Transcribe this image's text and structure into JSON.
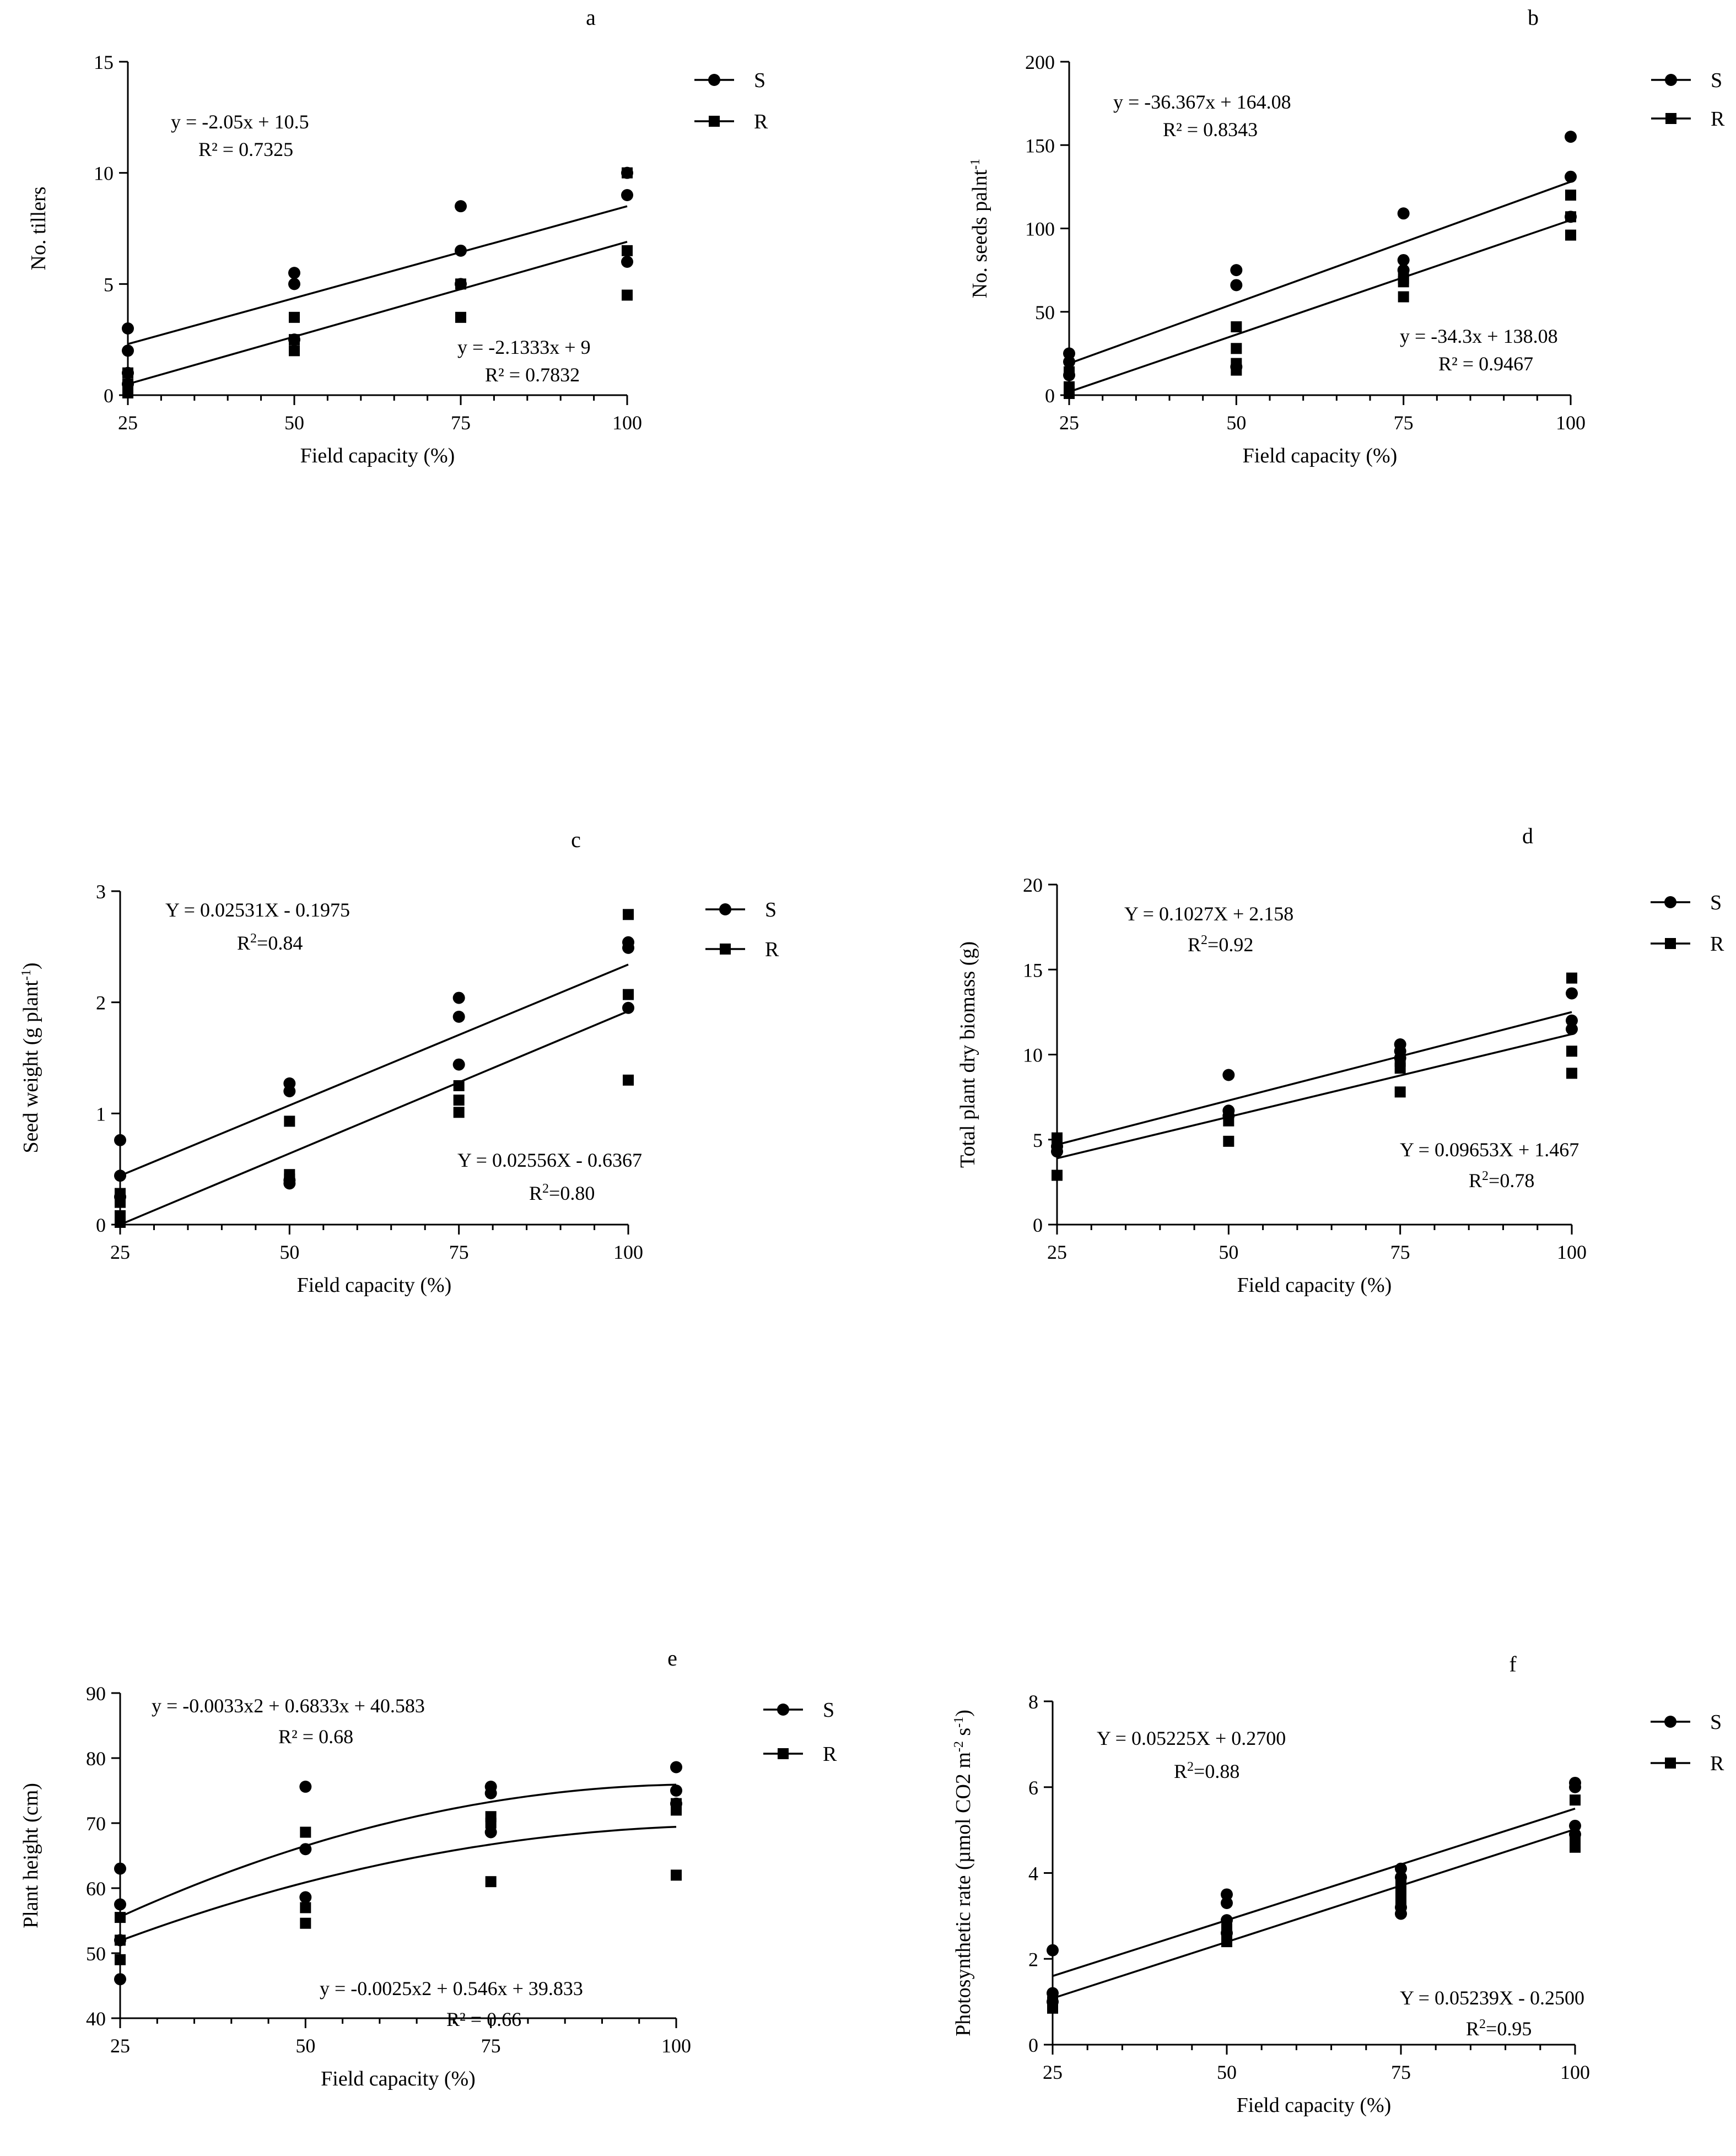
{
  "figure": {
    "x_label": "Field capacity (%)"
  },
  "chart_data": [
    {
      "panel": "a",
      "type": "scatter",
      "xlabel": "Field capacity (%)",
      "ylabel": "No. tillers",
      "ylabel_sup": "",
      "ylabel_tail": "",
      "xlim": [
        25,
        100
      ],
      "ylim": [
        0,
        15
      ],
      "xticks": [
        25,
        50,
        75,
        100
      ],
      "yticks": [
        0,
        5,
        10,
        15
      ],
      "legend": [
        "S",
        "R"
      ],
      "series": [
        {
          "name": "S",
          "marker": "circle",
          "points": [
            [
              25,
              3
            ],
            [
              25,
              2
            ],
            [
              25,
              1
            ],
            [
              25,
              0.5
            ],
            [
              50,
              5.5
            ],
            [
              50,
              5
            ],
            [
              50,
              2.5
            ],
            [
              75,
              8.5
            ],
            [
              75,
              6.5
            ],
            [
              75,
              5
            ],
            [
              100,
              10
            ],
            [
              100,
              9
            ],
            [
              100,
              6
            ]
          ],
          "fit": {
            "type": "linear",
            "x0": 25,
            "x1": 100,
            "y0": 2.3,
            "y1": 8.5
          }
        },
        {
          "name": "R",
          "marker": "square",
          "points": [
            [
              25,
              1
            ],
            [
              25,
              0.5
            ],
            [
              25,
              0.1
            ],
            [
              50,
              3.5
            ],
            [
              50,
              2.5
            ],
            [
              50,
              2
            ],
            [
              75,
              5
            ],
            [
              75,
              3.5
            ],
            [
              100,
              10
            ],
            [
              100,
              6.5
            ],
            [
              100,
              4.5
            ]
          ],
          "fit": {
            "type": "linear",
            "x0": 25,
            "x1": 100,
            "y0": 0.5,
            "y1": 6.9
          }
        }
      ],
      "annotations": [
        {
          "main": "y = -2.05x + 10.5",
          "r2": "R² = 0.7325",
          "sup": "",
          "r2tail": ""
        },
        {
          "main": "y = -2.1333x + 9",
          "r2": "R² = 0.7832",
          "sup": "",
          "r2tail": ""
        }
      ]
    },
    {
      "panel": "b",
      "type": "scatter",
      "xlabel": "Field capacity (%)",
      "ylabel": "No. seeds palnt",
      "ylabel_sup": "-1",
      "ylabel_tail": "",
      "xlim": [
        25,
        100
      ],
      "ylim": [
        0,
        200
      ],
      "xticks": [
        25,
        50,
        75,
        100
      ],
      "yticks": [
        0,
        50,
        100,
        150,
        200
      ],
      "legend": [
        "S",
        "R"
      ],
      "series": [
        {
          "name": "S",
          "marker": "circle",
          "points": [
            [
              25,
              25
            ],
            [
              25,
              20
            ],
            [
              25,
              12
            ],
            [
              50,
              75
            ],
            [
              50,
              66
            ],
            [
              50,
              17
            ],
            [
              75,
              109
            ],
            [
              75,
              81
            ],
            [
              75,
              75
            ],
            [
              100,
              155
            ],
            [
              100,
              131
            ],
            [
              100,
              107
            ]
          ],
          "fit": {
            "type": "linear",
            "x0": 25,
            "x1": 100,
            "y0": 19,
            "y1": 128
          }
        },
        {
          "name": "R",
          "marker": "square",
          "points": [
            [
              25,
              14
            ],
            [
              25,
              5
            ],
            [
              25,
              1
            ],
            [
              50,
              41
            ],
            [
              50,
              28
            ],
            [
              50,
              19
            ],
            [
              50,
              15
            ],
            [
              75,
              70
            ],
            [
              75,
              68
            ],
            [
              75,
              59
            ],
            [
              100,
              120
            ],
            [
              100,
              107
            ],
            [
              100,
              96
            ]
          ],
          "fit": {
            "type": "linear",
            "x0": 25,
            "x1": 100,
            "y0": 2,
            "y1": 105
          }
        }
      ],
      "annotations": [
        {
          "main": "y = -36.367x + 164.08",
          "r2": "R² = 0.8343",
          "sup": "",
          "r2tail": ""
        },
        {
          "main": "y = -34.3x + 138.08",
          "r2": "R² = 0.9467",
          "sup": "",
          "r2tail": ""
        }
      ]
    },
    {
      "panel": "c",
      "type": "scatter",
      "xlabel": "Field capacity (%)",
      "ylabel": "Seed weight (g plant",
      "ylabel_sup": "-1",
      "ylabel_tail": ")",
      "xlim": [
        25,
        100
      ],
      "ylim": [
        0,
        3
      ],
      "xticks": [
        25,
        50,
        75,
        100
      ],
      "yticks": [
        0,
        1,
        2,
        3
      ],
      "legend": [
        "S",
        "R"
      ],
      "series": [
        {
          "name": "S",
          "marker": "circle",
          "points": [
            [
              25,
              0.76
            ],
            [
              25,
              0.44
            ],
            [
              25,
              0.25
            ],
            [
              50,
              1.27
            ],
            [
              50,
              1.2
            ],
            [
              50,
              0.4
            ],
            [
              50,
              0.37
            ],
            [
              75,
              2.04
            ],
            [
              75,
              1.87
            ],
            [
              75,
              1.44
            ],
            [
              100,
              2.54
            ],
            [
              100,
              2.49
            ],
            [
              100,
              1.95
            ]
          ],
          "fit": {
            "type": "linear",
            "x0": 25,
            "x1": 100,
            "y0": 0.44,
            "y1": 2.34
          }
        },
        {
          "name": "R",
          "marker": "square",
          "points": [
            [
              25,
              0.28
            ],
            [
              25,
              0.2
            ],
            [
              25,
              0.08
            ],
            [
              25,
              0.02
            ],
            [
              50,
              0.93
            ],
            [
              50,
              0.45
            ],
            [
              50,
              0.41
            ],
            [
              75,
              1.25
            ],
            [
              75,
              1.12
            ],
            [
              75,
              1.01
            ],
            [
              100,
              2.79
            ],
            [
              100,
              2.07
            ],
            [
              100,
              1.3
            ]
          ],
          "fit": {
            "type": "linear",
            "x0": 25,
            "x1": 100,
            "y0": 0.0,
            "y1": 1.92
          }
        }
      ],
      "annotations": [
        {
          "main": "Y = 0.02531X - 0.1975",
          "r2": "R",
          "sup": "2",
          "r2tail": "=0.84"
        },
        {
          "main": "Y = 0.02556X - 0.6367",
          "r2": "R",
          "sup": "2",
          "r2tail": "=0.80"
        }
      ]
    },
    {
      "panel": "d",
      "type": "scatter",
      "xlabel": "Field capacity (%)",
      "ylabel": "Total plant dry biomass (g)",
      "ylabel_sup": "",
      "ylabel_tail": "",
      "xlim": [
        25,
        100
      ],
      "ylim": [
        0,
        20
      ],
      "xticks": [
        25,
        50,
        75,
        100
      ],
      "yticks": [
        0,
        5,
        10,
        15,
        20
      ],
      "legend": [
        "S",
        "R"
      ],
      "series": [
        {
          "name": "S",
          "marker": "circle",
          "points": [
            [
              25,
              4.6
            ],
            [
              25,
              4.3
            ],
            [
              50,
              8.8
            ],
            [
              50,
              6.7
            ],
            [
              50,
              6.4
            ],
            [
              75,
              10.6
            ],
            [
              75,
              10.2
            ],
            [
              75,
              9.8
            ],
            [
              100,
              13.6
            ],
            [
              100,
              12
            ],
            [
              100,
              11.5
            ]
          ],
          "fit": {
            "type": "linear",
            "x0": 25,
            "x1": 100,
            "y0": 4.7,
            "y1": 12.5
          }
        },
        {
          "name": "R",
          "marker": "square",
          "points": [
            [
              25,
              5.1
            ],
            [
              25,
              4.5
            ],
            [
              25,
              2.9
            ],
            [
              50,
              6.1
            ],
            [
              50,
              4.9
            ],
            [
              75,
              9.6
            ],
            [
              75,
              9.2
            ],
            [
              75,
              7.8
            ],
            [
              100,
              14.5
            ],
            [
              100,
              10.2
            ],
            [
              100,
              8.9
            ]
          ],
          "fit": {
            "type": "linear",
            "x0": 25,
            "x1": 100,
            "y0": 3.9,
            "y1": 11.2
          }
        }
      ],
      "annotations": [
        {
          "main": "Y = 0.1027X + 2.158",
          "r2": "R",
          "sup": "2",
          "r2tail": "=0.92"
        },
        {
          "main": "Y = 0.09653X + 1.467",
          "r2": "R",
          "sup": "2",
          "r2tail": "=0.78"
        }
      ]
    },
    {
      "panel": "e",
      "type": "scatter",
      "xlabel": "Field capacity (%)",
      "ylabel": "Plant height (cm)",
      "ylabel_sup": "",
      "ylabel_tail": "",
      "xlim": [
        25,
        100
      ],
      "ylim": [
        40,
        90
      ],
      "xticks": [
        25,
        50,
        75,
        100
      ],
      "yticks": [
        40,
        50,
        60,
        70,
        80,
        90
      ],
      "legend": [
        "S",
        "R"
      ],
      "series": [
        {
          "name": "S",
          "marker": "circle",
          "points": [
            [
              25,
              63
            ],
            [
              25,
              57.5
            ],
            [
              25,
              52
            ],
            [
              25,
              46
            ],
            [
              50,
              75.6
            ],
            [
              50,
              66
            ],
            [
              50,
              58.6
            ],
            [
              75,
              75.6
            ],
            [
              75,
              74.6
            ],
            [
              75,
              68.6
            ],
            [
              100,
              78.6
            ],
            [
              100,
              75
            ],
            [
              100,
              73
            ]
          ],
          "fit": {
            "type": "quadratic",
            "x0": 25,
            "x1": 100,
            "c": [
              -0.0033,
              0.6833,
              40.583
            ]
          }
        },
        {
          "name": "R",
          "marker": "square",
          "points": [
            [
              25,
              55.5
            ],
            [
              25,
              52
            ],
            [
              25,
              49
            ],
            [
              50,
              68.6
            ],
            [
              50,
              57
            ],
            [
              50,
              54.6
            ],
            [
              75,
              71
            ],
            [
              75,
              70
            ],
            [
              75,
              61
            ],
            [
              100,
              73
            ],
            [
              100,
              72
            ],
            [
              100,
              62
            ]
          ],
          "fit": {
            "type": "quadratic",
            "x0": 25,
            "x1": 100,
            "c": [
              -0.0025,
              0.546,
              39.833
            ]
          }
        }
      ],
      "annotations": [
        {
          "main": "y = -0.0033x2 + 0.6833x + 40.583",
          "r2": "R² = 0.68",
          "sup": "",
          "r2tail": ""
        },
        {
          "main": "y = -0.0025x2 + 0.546x + 39.833",
          "r2": "R² = 0.66",
          "sup": "",
          "r2tail": ""
        }
      ]
    },
    {
      "panel": "f",
      "type": "scatter",
      "xlabel": "Field capacity (%)",
      "ylabel": "Photosynthetic rate (µmol CO2 m",
      "ylabel_sup": "-2",
      "ylabel_tail": " s",
      "ylabel_sup2": "-1",
      "ylabel_tail2": ")",
      "xlim": [
        25,
        100
      ],
      "ylim": [
        0,
        8
      ],
      "xticks": [
        25,
        50,
        75,
        100
      ],
      "yticks": [
        0,
        2,
        4,
        6,
        8
      ],
      "legend": [
        "S",
        "R"
      ],
      "series": [
        {
          "name": "S",
          "marker": "circle",
          "points": [
            [
              25,
              2.2
            ],
            [
              25,
              1.2
            ],
            [
              25,
              1.0
            ],
            [
              50,
              3.5
            ],
            [
              50,
              3.3
            ],
            [
              50,
              2.9
            ],
            [
              50,
              2.6
            ],
            [
              75,
              4.1
            ],
            [
              75,
              3.9
            ],
            [
              75,
              3.2
            ],
            [
              75,
              3.05
            ],
            [
              100,
              6.1
            ],
            [
              100,
              6.0
            ],
            [
              100,
              5.1
            ],
            [
              100,
              4.9
            ]
          ],
          "fit": {
            "type": "linear",
            "x0": 25,
            "x1": 100,
            "y0": 1.6,
            "y1": 5.5
          }
        },
        {
          "name": "R",
          "marker": "square",
          "points": [
            [
              25,
              1.0
            ],
            [
              25,
              0.85
            ],
            [
              50,
              2.7
            ],
            [
              50,
              2.5
            ],
            [
              50,
              2.4
            ],
            [
              75,
              3.8
            ],
            [
              75,
              3.6
            ],
            [
              75,
              3.4
            ],
            [
              75,
              3.3
            ],
            [
              100,
              5.7
            ],
            [
              100,
              4.8
            ],
            [
              100,
              4.6
            ]
          ],
          "fit": {
            "type": "linear",
            "x0": 25,
            "x1": 100,
            "y0": 1.08,
            "y1": 5.02
          }
        }
      ],
      "annotations": [
        {
          "main": "Y = 0.05225X + 0.2700",
          "r2": "R",
          "sup": "2",
          "r2tail": "=0.88"
        },
        {
          "main": "Y = 0.05239X - 0.2500",
          "r2": "R",
          "sup": "2",
          "r2tail": "=0.95"
        }
      ]
    }
  ]
}
